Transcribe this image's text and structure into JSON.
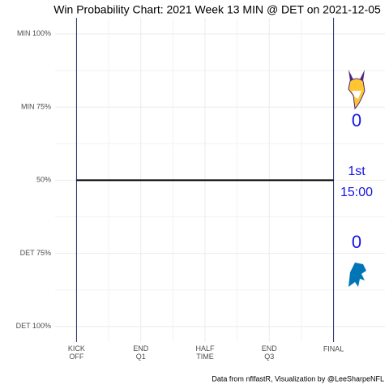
{
  "chart_data": {
    "type": "line",
    "title": "Win Probability Chart: 2021 Week 13 MIN @ DET on 2021-12-05",
    "caption": "Data from nflfastR, Visualization by @LeeSharpeNFL",
    "x": [
      0,
      60
    ],
    "series": [
      {
        "color": "#000000",
        "values": [
          50,
          50
        ]
      }
    ],
    "xlim": [
      -5,
      72
    ],
    "xticks": [
      {
        "value": 0,
        "label": "KICK OFF"
      },
      {
        "value": 15,
        "label": "END Q1"
      },
      {
        "value": 30,
        "label": "HALF TIME"
      },
      {
        "value": 45,
        "label": "END Q3"
      },
      {
        "value": 60,
        "label": "FINAL"
      }
    ],
    "ylim": [
      -5.3,
      105.5
    ],
    "yticks": [
      {
        "value": 100,
        "label": "MIN 100%"
      },
      {
        "value": 75,
        "label": "MIN 75%"
      },
      {
        "value": 50,
        "label": "50%"
      },
      {
        "value": 25,
        "label": "DET 75%"
      },
      {
        "value": 0,
        "label": "DET 100%"
      }
    ],
    "grid": true,
    "annotations": {
      "away_score": 0,
      "home_score": 0,
      "quarter": "1st",
      "clock": "15:00",
      "color": "#1414e6"
    },
    "reference_line_color": "#27306b"
  }
}
